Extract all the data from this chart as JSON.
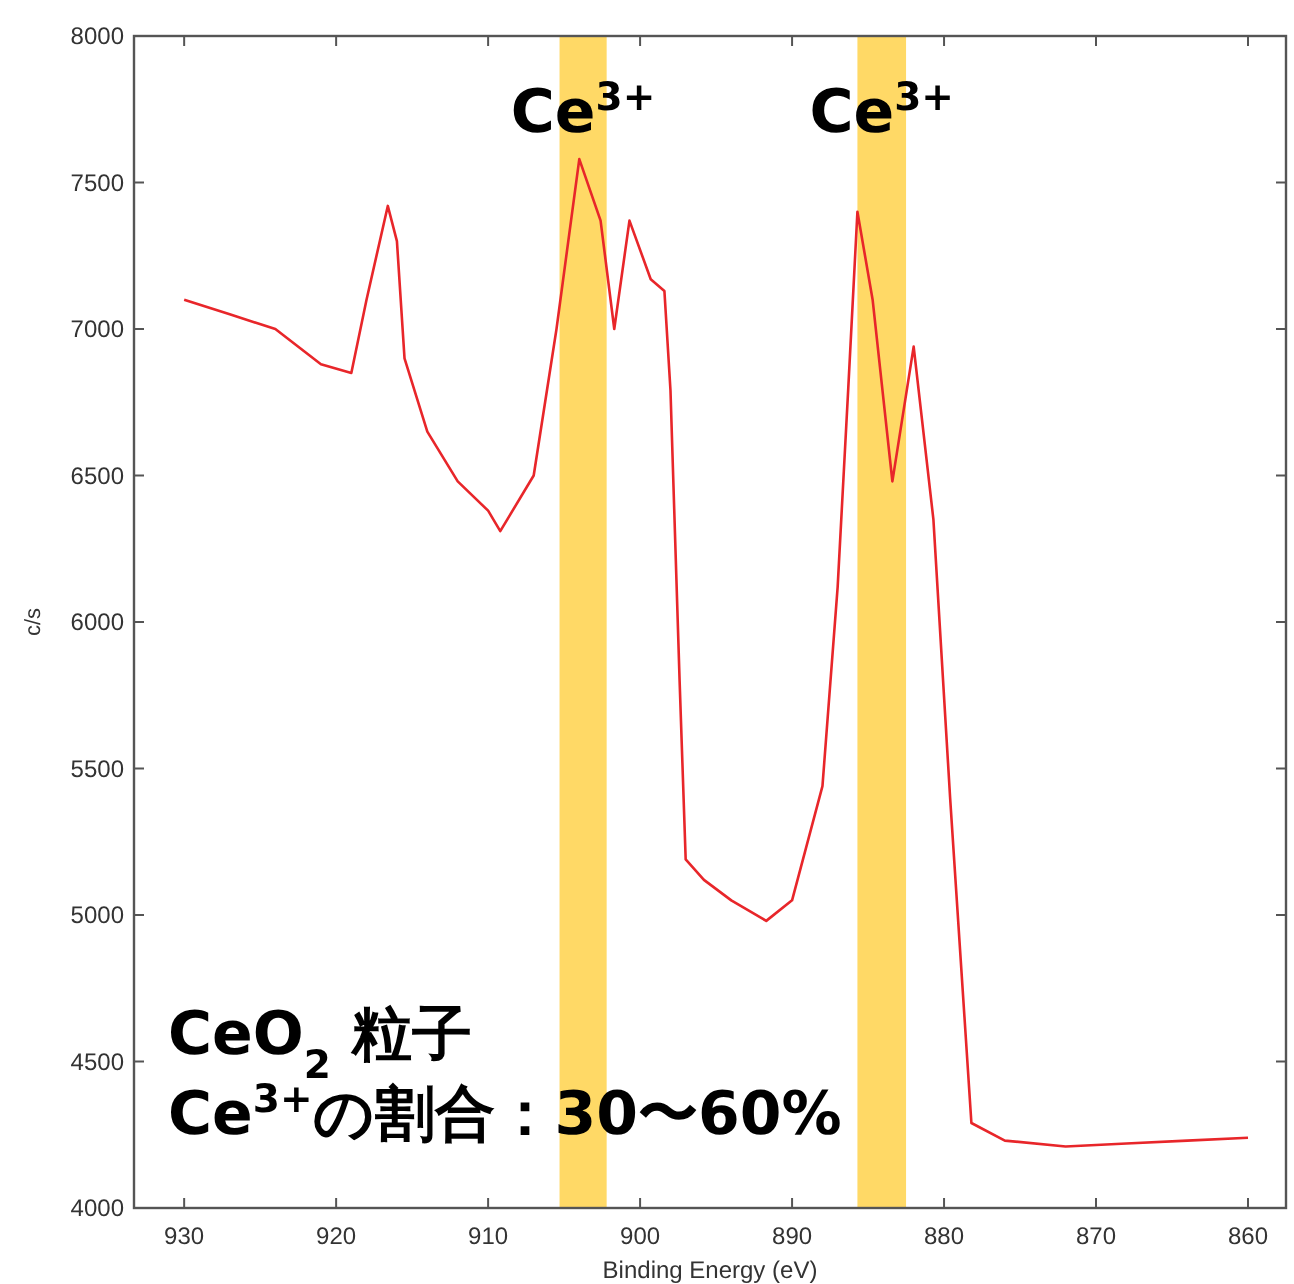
{
  "chart_data": {
    "type": "line",
    "xlabel": "Binding Energy (eV)",
    "ylabel": "c/s",
    "x": [
      930,
      927,
      924,
      921,
      919,
      918,
      916.6,
      916,
      915.5,
      914,
      912,
      910,
      909.2,
      907,
      905.5,
      904,
      902.6,
      901.7,
      900.7,
      899.3,
      898.4,
      898,
      897.4,
      897,
      895.8,
      894,
      891.7,
      890,
      888,
      887,
      886.3,
      885.7,
      884.7,
      883.4,
      882,
      880.7,
      879.6,
      878.2,
      876,
      872,
      868,
      864,
      860
    ],
    "series": [
      {
        "color": "#e8262a",
        "values": [
          7100,
          7050,
          7000,
          6880,
          6850,
          7100,
          7420,
          7300,
          6900,
          6650,
          6480,
          6380,
          6310,
          6500,
          7000,
          7580,
          7370,
          7000,
          7370,
          7170,
          7130,
          6790,
          5800,
          5190,
          5120,
          5050,
          4980,
          5050,
          5440,
          6120,
          6800,
          7400,
          7100,
          6480,
          6940,
          6350,
          5400,
          4290,
          4230,
          4210,
          4220,
          4230,
          4240
        ]
      }
    ],
    "xlim": [
      933.3,
      857.5
    ],
    "ylim": [
      4000,
      8000
    ],
    "xticks": [
      930,
      920,
      910,
      900,
      890,
      880,
      870,
      860
    ],
    "yticks": [
      4000,
      4500,
      5000,
      5500,
      6000,
      6500,
      7000,
      7500,
      8000
    ],
    "grid": false,
    "marker": "none",
    "line_style": "solid",
    "bands": [
      {
        "axis": "x",
        "from": 905.3,
        "to": 902.2,
        "color": "#ffd966",
        "label": "Ce$^{3+}$"
      },
      {
        "axis": "x",
        "from": 885.7,
        "to": 882.5,
        "color": "#ffd966",
        "label": "Ce$^{3+}$"
      }
    ],
    "annotations": [
      "CeO$_{2}$ 粒子",
      "Ce$^{3+}$の割合：30〜60%"
    ]
  }
}
